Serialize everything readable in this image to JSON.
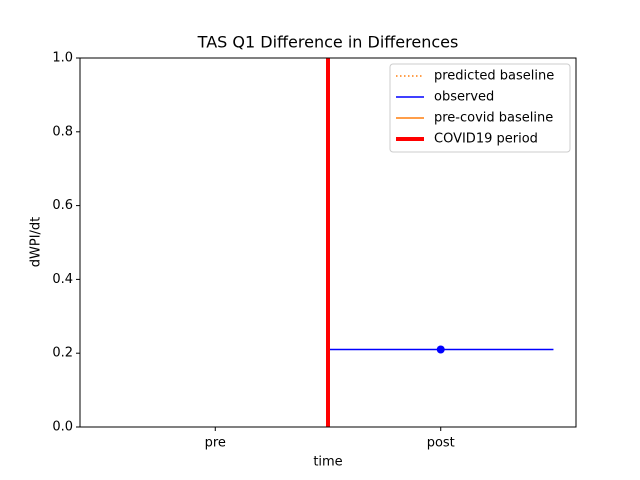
{
  "chart_data": {
    "type": "line",
    "title": "TAS Q1 Difference in Differences",
    "xlabel": "time",
    "ylabel": "dWPI/dt",
    "xlim": [
      -0.6,
      1.6
    ],
    "xticks": [
      {
        "value": 0,
        "label": "pre"
      },
      {
        "value": 1,
        "label": "post"
      }
    ],
    "ylim": [
      0,
      1
    ],
    "yticks": [
      {
        "value": 0,
        "label": "0.0"
      },
      0.2,
      0.4,
      0.6,
      0.8,
      {
        "value": 1,
        "label": "1.0"
      }
    ],
    "legend": "upper right",
    "series": [
      {
        "name": "predicted baseline",
        "color": "#ff7f0e",
        "linestyle": "dotted",
        "x": [],
        "values": []
      },
      {
        "name": "observed",
        "color": "#0000ff",
        "linestyle": "solid",
        "x": [
          0.5,
          1.5
        ],
        "values": [
          0.21,
          0.21
        ],
        "markers": {
          "x": [
            1
          ],
          "values": [
            0.21
          ]
        }
      },
      {
        "name": "pre-covid baseline",
        "color": "#ff7f0e",
        "linestyle": "solid",
        "x": [],
        "values": []
      },
      {
        "name": "COVID19 period",
        "color": "#ff0000",
        "linestyle": "solid",
        "kind": "vline",
        "x": 0.5
      }
    ]
  }
}
